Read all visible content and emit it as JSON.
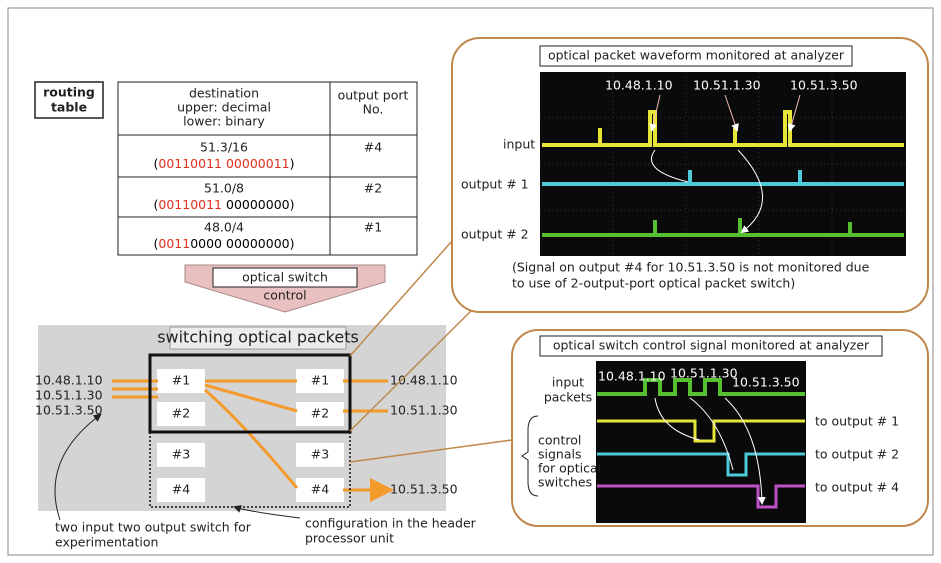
{
  "routing_table": {
    "label": [
      "routing",
      "table"
    ],
    "header": {
      "destination": [
        "destination",
        "upper: decimal",
        "lower: binary"
      ],
      "port": [
        "output port",
        "No."
      ]
    },
    "rows": [
      {
        "decimal": "51.3/16",
        "binary": [
          {
            "text": "(",
            "color": "#000000"
          },
          {
            "text": "00110011 00000011",
            "color": "#e0301e"
          },
          {
            "text": ")",
            "color": "#000000"
          }
        ],
        "port": "#4"
      },
      {
        "decimal": "51.0/8",
        "binary": [
          {
            "text": "(",
            "color": "#000000"
          },
          {
            "text": "00110011",
            "color": "#e0301e"
          },
          {
            "text": " 00000000)",
            "color": "#000000"
          }
        ],
        "port": "#2"
      },
      {
        "decimal": "48.0/4",
        "binary": [
          {
            "text": "(",
            "color": "#000000"
          },
          {
            "text": "0011",
            "color": "#e0301e"
          },
          {
            "text": "0000 00000000)",
            "color": "#000000"
          }
        ],
        "port": "#1"
      }
    ]
  },
  "control_arrow": [
    "optical switch",
    "control"
  ],
  "switching": {
    "title": "switching optical packets",
    "inputs": [
      "10.48.1.10",
      "10.51.1.30",
      "10.51.3.50"
    ],
    "left_ports": [
      "#1",
      "#2",
      "#3",
      "#4"
    ],
    "right_ports": [
      "#1",
      "#2",
      "#3",
      "#4"
    ],
    "outputs": [
      "10.48.1.10",
      "10.51.1.30",
      "10.51.3.50"
    ],
    "caption_left": [
      "two input two output switch for",
      "experimentation"
    ],
    "caption_right": [
      "configuration in the header",
      "processor unit"
    ]
  },
  "waveform": {
    "title": "optical packet waveform monitored at analyzer",
    "labels": [
      "input",
      "output # 1",
      "output # 2"
    ],
    "annotations": [
      "10.48.1.10",
      "10.51.1.30",
      "10.51.3.50"
    ],
    "note": [
      "(Signal on output #4 for 10.51.3.50 is not monitored due",
      "to use of 2-output-port optical packet switch)"
    ]
  },
  "control": {
    "title": "optical switch control signal monitored at analyzer",
    "input_label": [
      "input",
      "packets"
    ],
    "signals_label": [
      "control",
      "signals",
      "for optical",
      "switches"
    ],
    "outputs": [
      "to output # 1",
      "to output # 2",
      "to output # 4"
    ],
    "annotations": [
      "10.48.1.10",
      "10.51.1.30",
      "10.51.3.50"
    ]
  }
}
